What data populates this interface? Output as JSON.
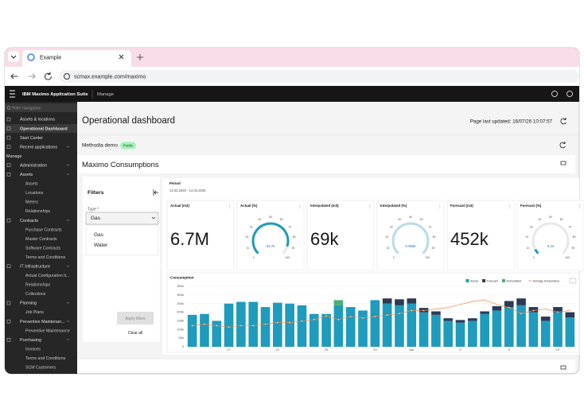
{
  "browser": {
    "tab_title": "Example",
    "url": "scmax.example.com/maximo"
  },
  "app_header": {
    "product": "IBM Maximo Application Suite",
    "module": "Manage"
  },
  "sidebar": {
    "search_placeholder": "Filter navigation",
    "items": [
      "Assets & locations",
      "Operational Dashboard",
      "Start Center",
      "Recent applications",
      "Manage",
      "Administration",
      "Assets",
      "Assets",
      "Locations",
      "Meters",
      "Relationships",
      "Contracts",
      "Purchase Contracts",
      "Master Contracts",
      "Software Contracts",
      "Terms and Conditions",
      "IT Infrastructure",
      "Actual Configuration It...",
      "Relationships",
      "Collections",
      "Planning",
      "Job Plans",
      "Preventive Maintenan...",
      "Preventive Maintenance",
      "Purchasing",
      "Invoices",
      "Terms and Conditions",
      "SCM Customers"
    ]
  },
  "page": {
    "title": "Operational dashboard",
    "last_updated": "Page last updated: 16/07/26 10:07:57",
    "dashboard_name": "Methodia demo",
    "dashboard_tag": "Public",
    "section_title": "Maximo Consumptions"
  },
  "filters": {
    "title": "Filters",
    "type_label": "Type *",
    "type_value": "Gas",
    "options": [
      "Gas",
      "Water"
    ],
    "apply": "Apply filters",
    "clear": "Clear all"
  },
  "period": {
    "label": "Period",
    "range": "14.03.2025 - 14.04.2025"
  },
  "kpis": [
    {
      "title": "Actual (m3)",
      "value": "6.7M"
    },
    {
      "title": "Actual (%)",
      "label": "93.7k",
      "percent": 90
    },
    {
      "title": "Interpolated (m3)",
      "value": "69k"
    },
    {
      "title": "Interpolated (%)",
      "label": "0.956k",
      "percent": 100
    },
    {
      "title": "Forecast (m3)",
      "value": "452k"
    },
    {
      "title": "Forecast (%)",
      "label": "6.34",
      "percent": 6
    }
  ],
  "gauge_ticks": [
    0,
    10,
    20,
    30,
    40,
    50,
    60,
    70,
    80,
    90,
    100
  ],
  "chart_data": {
    "type": "bar",
    "title": "Consumption",
    "categories": [
      null,
      null,
      null,
      "17",
      null,
      null,
      null,
      "21",
      null,
      null,
      null,
      "25",
      null,
      null,
      null,
      "29",
      null,
      null,
      "Apr",
      null,
      null,
      null,
      "5",
      null,
      null,
      null,
      "9",
      null,
      null,
      null,
      "13",
      null
    ],
    "series": [
      {
        "name": "Actual",
        "color": "#1e9bbd",
        "values": [
          185000,
          190000,
          150000,
          250000,
          260000,
          260000,
          230000,
          255000,
          250000,
          240000,
          190000,
          190000,
          240000,
          230000,
          210000,
          270000,
          250000,
          240000,
          250000,
          200000,
          185000,
          150000,
          140000,
          150000,
          190000,
          210000,
          230000,
          240000,
          200000,
          150000,
          200000,
          170000
        ]
      },
      {
        "name": "Forecast",
        "color": "#2b3a55",
        "values": [
          null,
          null,
          null,
          null,
          null,
          null,
          null,
          null,
          null,
          null,
          null,
          null,
          null,
          null,
          null,
          null,
          30000,
          35000,
          30000,
          25000,
          20000,
          15000,
          15000,
          15000,
          15000,
          25000,
          35000,
          40000,
          30000,
          25000,
          30000,
          30000
        ]
      },
      {
        "name": "Interpolated",
        "color": "#4caf7a",
        "values": [
          null,
          null,
          null,
          null,
          null,
          null,
          null,
          null,
          null,
          null,
          null,
          null,
          30000,
          null,
          null,
          null,
          null,
          null,
          null,
          null,
          null,
          null,
          null,
          null,
          null,
          null,
          null,
          null,
          null,
          null,
          null,
          null
        ]
      },
      {
        "name": "Average temperature",
        "color": "#f08a4b",
        "axis": "y2",
        "values": [
          7,
          7.5,
          7,
          6.5,
          7,
          7,
          7.5,
          8,
          8,
          8.5,
          9,
          10.2,
          9,
          10,
          9.5,
          10,
          10.5,
          11,
          12,
          12,
          12.5,
          13,
          14,
          15,
          15.5,
          14,
          13,
          11,
          12,
          12.5,
          11.5,
          12
        ]
      }
    ],
    "ylim": [
      0,
      350000
    ],
    "yticks": [
      0,
      {
        "value": 50000,
        "label": "50k"
      },
      {
        "value": 100000,
        "label": "100k"
      },
      {
        "value": 150000,
        "label": "150k"
      },
      {
        "value": 200000,
        "label": "200k"
      },
      {
        "value": 250000,
        "label": "250k"
      },
      {
        "value": 300000,
        "label": "300k"
      },
      {
        "value": 350000,
        "label": "350k"
      }
    ],
    "y2lim": [
      0,
      20
    ],
    "grid": true,
    "legend": "top-right"
  }
}
